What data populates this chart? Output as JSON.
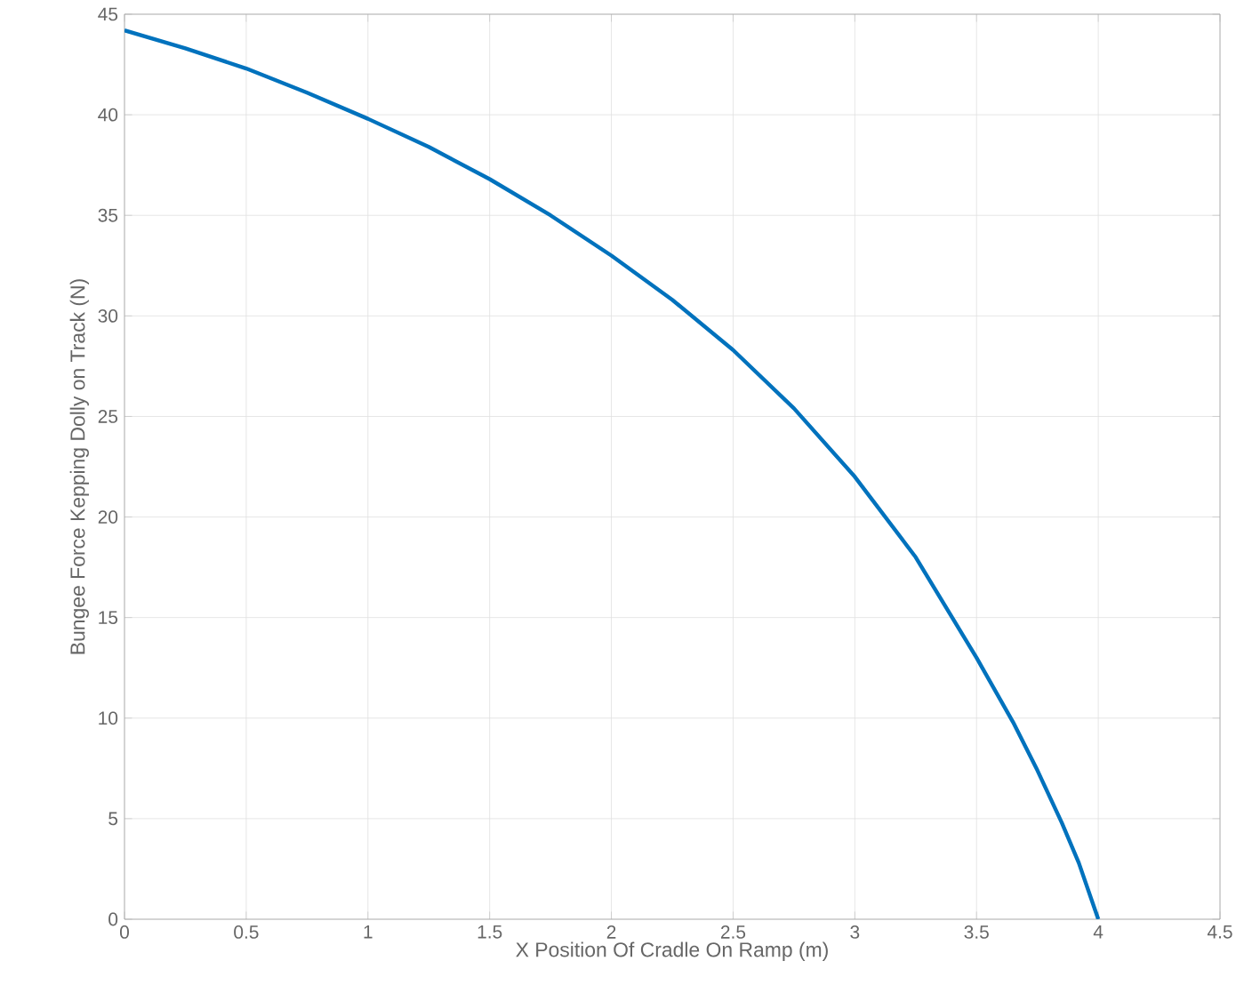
{
  "chart_data": {
    "type": "line",
    "xlabel": "X Position Of Cradle On Ramp (m)",
    "ylabel": "Bungee Force Kepping Dolly on Track (N)",
    "x": [
      0,
      0.25,
      0.5,
      0.75,
      1,
      1.25,
      1.5,
      1.75,
      2,
      2.25,
      2.5,
      2.75,
      3,
      3.25,
      3.5,
      3.65,
      3.75,
      3.85,
      3.92,
      4
    ],
    "series": [
      {
        "color": "#0072bd",
        "values": [
          44.2,
          43.3,
          42.3,
          41.1,
          39.8,
          38.4,
          36.8,
          35.0,
          33.0,
          30.8,
          28.3,
          25.4,
          22.0,
          18.0,
          13.0,
          9.8,
          7.4,
          4.8,
          2.8,
          0
        ]
      }
    ],
    "xlim": [
      0,
      4.5
    ],
    "ylim": [
      0,
      45
    ],
    "xticks": [
      0,
      0.5,
      1,
      1.5,
      2,
      2.5,
      3,
      3.5,
      4,
      4.5
    ],
    "yticks": [
      0,
      5,
      10,
      15,
      20,
      25,
      30,
      35,
      40,
      45
    ],
    "grid": true,
    "marker": "none",
    "line_style": "solid"
  }
}
